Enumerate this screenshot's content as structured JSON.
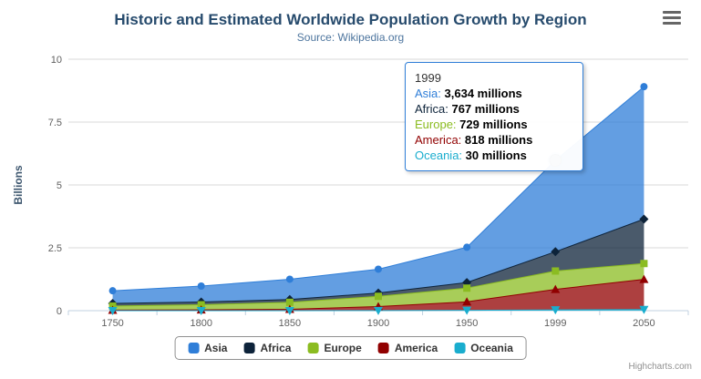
{
  "header": {
    "title": "Historic and Estimated Worldwide Population Growth by Region",
    "subtitle": "Source: Wikipedia.org"
  },
  "credits": "Highcharts.com",
  "chart_data": {
    "type": "area",
    "stacking": "normal",
    "unit": "millions",
    "categories": [
      "1750",
      "1800",
      "1850",
      "1900",
      "1950",
      "1999",
      "2050"
    ],
    "series": [
      {
        "name": "Asia",
        "color": "#2f7ed8",
        "marker": "circle",
        "values": [
          502,
          635,
          809,
          947,
          1402,
          3634,
          5268
        ]
      },
      {
        "name": "Africa",
        "color": "#0d233a",
        "marker": "diamond",
        "values": [
          106,
          107,
          111,
          133,
          221,
          767,
          1766
        ]
      },
      {
        "name": "Europe",
        "color": "#8bbc21",
        "marker": "square",
        "values": [
          163,
          203,
          276,
          408,
          547,
          729,
          628
        ]
      },
      {
        "name": "America",
        "color": "#910000",
        "marker": "triangle",
        "values": [
          18,
          31,
          54,
          156,
          339,
          818,
          1201
        ]
      },
      {
        "name": "Oceania",
        "color": "#1aadce",
        "marker": "triangle-down",
        "values": [
          2,
          2,
          2,
          6,
          13,
          30,
          46
        ]
      }
    ],
    "ylabel": "Billions",
    "yticks": [
      0,
      2.5,
      5,
      7.5,
      10
    ],
    "ylim": [
      0,
      10
    ],
    "grid": true,
    "legend_position": "bottom"
  },
  "tooltip": {
    "header": "1999",
    "border_color": "#2f7ed8",
    "hovered_series": "Asia",
    "hovered_category": "1999",
    "rows": [
      {
        "name": "Asia",
        "value": "3,634 millions"
      },
      {
        "name": "Africa",
        "value": "767 millions"
      },
      {
        "name": "Europe",
        "value": "729 millions"
      },
      {
        "name": "America",
        "value": "818 millions"
      },
      {
        "name": "Oceania",
        "value": "30 millions"
      }
    ]
  }
}
